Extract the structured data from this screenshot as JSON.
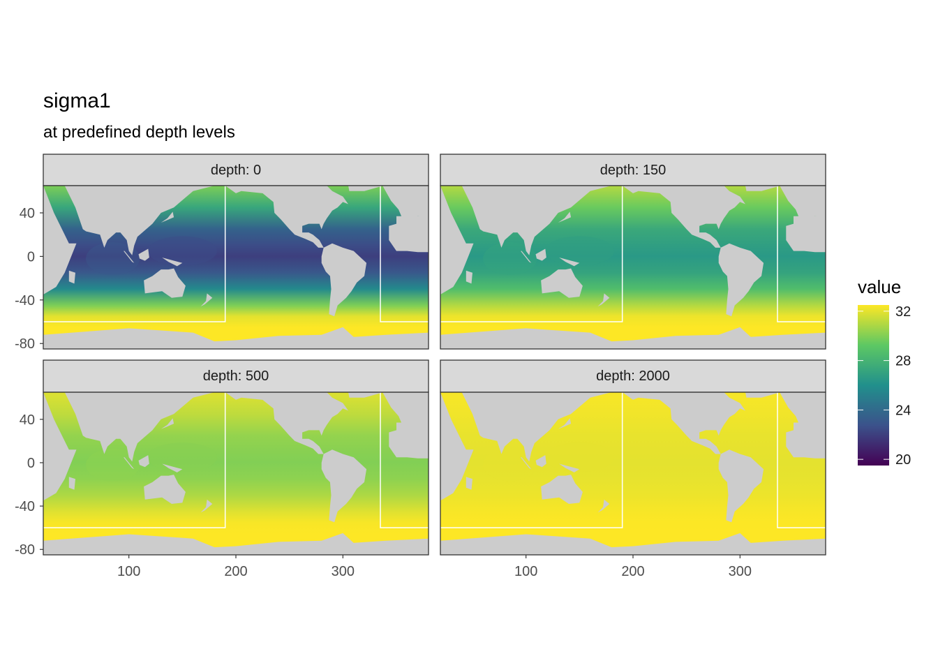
{
  "title": "sigma1",
  "subtitle": "at predefined depth levels",
  "chart_data": {
    "type": "heatmap",
    "facet_prefix": "depth: ",
    "facets": [
      {
        "label": "depth: 0",
        "depth": 0,
        "min": 22,
        "typical": 27.5,
        "max": 32.5
      },
      {
        "label": "depth: 150",
        "depth": 150,
        "min": 26.5,
        "typical": 29.5,
        "max": 32.5
      },
      {
        "label": "depth: 500",
        "depth": 500,
        "min": 30,
        "typical": 31,
        "max": 32.5
      },
      {
        "label": "depth: 2000",
        "depth": 2000,
        "min": 32,
        "typical": 32.3,
        "max": 32.5
      }
    ],
    "x_axis": {
      "ticks": [
        100,
        200,
        300
      ],
      "range": [
        20,
        380
      ]
    },
    "y_axis": {
      "ticks": [
        40,
        0,
        -40,
        -80
      ],
      "range": [
        -85,
        65
      ]
    },
    "legend": {
      "title": "value",
      "ticks": [
        32,
        28,
        24,
        20
      ],
      "range": [
        19.5,
        32.5
      ],
      "placement": "right"
    },
    "colors": {
      "land": "#cccccc",
      "missing": "#ffffff",
      "region_outline": "#ffffff",
      "palette": [
        "#440154",
        "#3b528b",
        "#21908c",
        "#5dc863",
        "#fde725"
      ]
    },
    "region_outline": {
      "x_left": 190,
      "x_right": 335,
      "y_bottom": -60,
      "y_top": 65
    },
    "grid": false
  }
}
